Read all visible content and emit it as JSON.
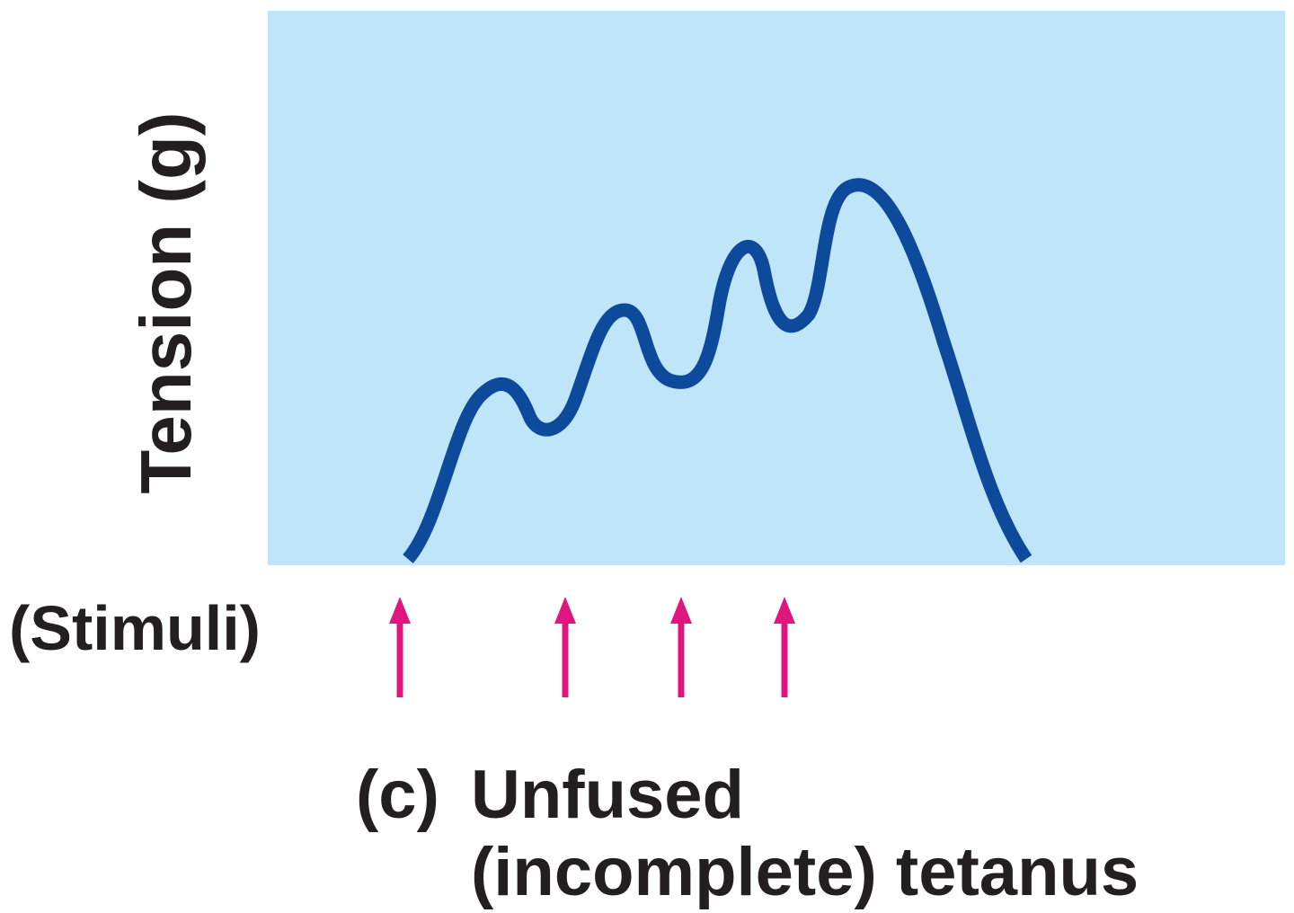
{
  "figure": {
    "y_axis_label": "Tension (g)",
    "stimuli_label": "(Stimuli)",
    "caption": {
      "prefix": "(c)",
      "line1": "Unfused",
      "line2": "(incomplete) tetanus"
    },
    "colors": {
      "plot_background": "#bfe5f8",
      "tension_curve": "#0d4a9b",
      "stimulus_arrows": "#e0157f",
      "text": "#231f20"
    },
    "stimuli_count": 4,
    "curve_description_peaks": 4
  }
}
